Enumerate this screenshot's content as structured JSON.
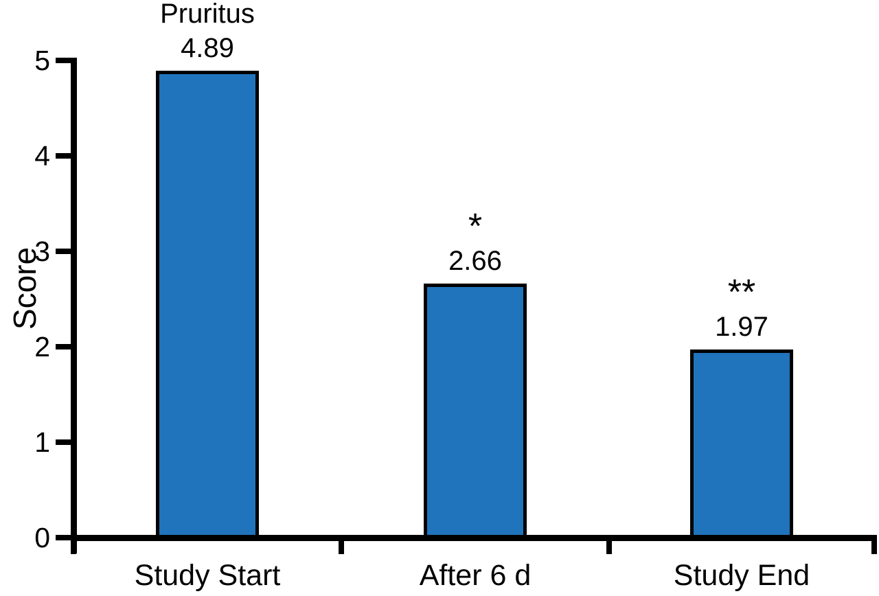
{
  "chart_data": {
    "type": "bar",
    "title": "Pruritus",
    "ylabel": "Score",
    "xlabel": "",
    "categories": [
      "Study Start",
      "After 6 d",
      "Study End"
    ],
    "values": [
      4.89,
      2.66,
      1.97
    ],
    "value_labels": [
      "4.89",
      "2.66",
      "1.97"
    ],
    "significance_markers": [
      "",
      "*",
      "**"
    ],
    "yticks": [
      "0",
      "1",
      "2",
      "3",
      "4",
      "5"
    ],
    "ylim": [
      0,
      5
    ],
    "grid": false,
    "legend_position": "none",
    "bar_color": "#2074BC",
    "bar_border_color": "#000000",
    "axis_color": "#000000",
    "text_color": "#000000",
    "background_color": "#FFFFFF"
  }
}
